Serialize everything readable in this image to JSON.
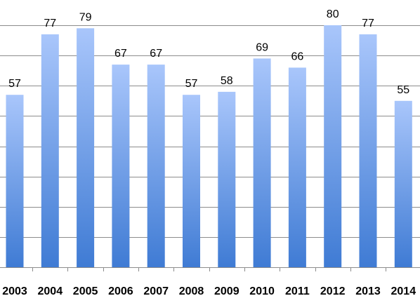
{
  "chart_data": {
    "type": "bar",
    "categories": [
      "2003",
      "2004",
      "2005",
      "2006",
      "2007",
      "2008",
      "2009",
      "2010",
      "2011",
      "2012",
      "2013",
      "2014"
    ],
    "values": [
      57,
      77,
      79,
      67,
      67,
      57,
      58,
      69,
      66,
      80,
      77,
      55
    ],
    "data_labels": [
      "57",
      "77",
      "79",
      "67",
      "67",
      "57",
      "58",
      "69",
      "66",
      "80",
      "77",
      "55"
    ],
    "title": "",
    "xlabel": "",
    "ylabel": "",
    "ylim": [
      0,
      80
    ],
    "grid": true,
    "legend": "none",
    "colors": {
      "bar_top": "#a9c6fb",
      "bar_bottom": "#3f7bd4",
      "grid": "#8c8c8c"
    }
  }
}
